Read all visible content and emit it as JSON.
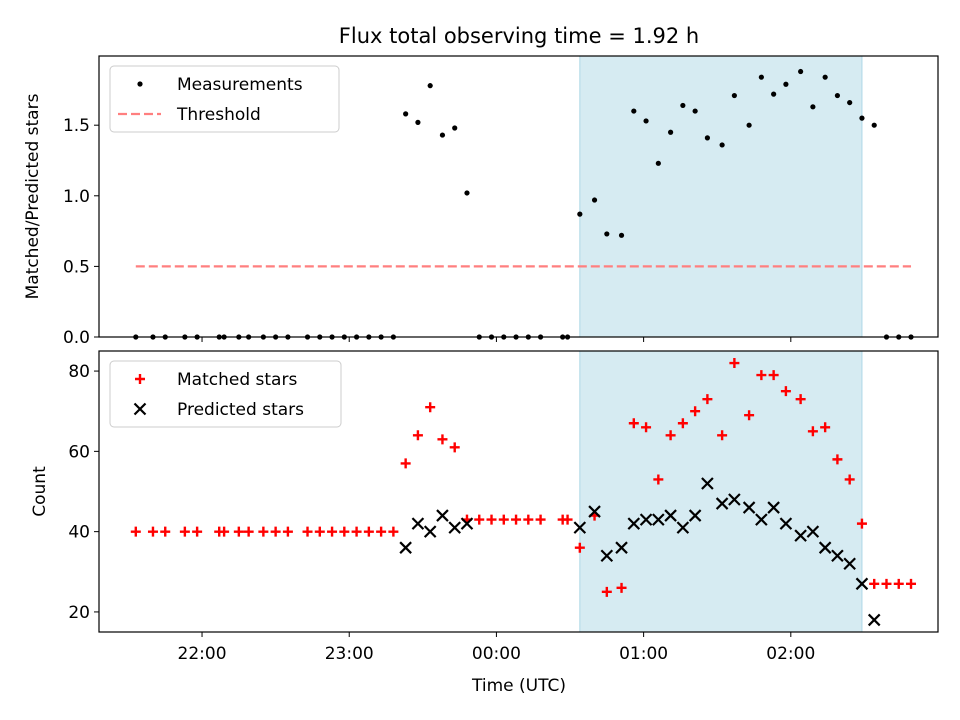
{
  "figure": {
    "title": "Flux total observing time = 1.92 h",
    "xlabel": "Time (UTC)",
    "xticks": [
      {
        "t": "22:00",
        "label": "22:00"
      },
      {
        "t": "23:00",
        "label": "23:00"
      },
      {
        "t": "00:00",
        "label": "00:00"
      },
      {
        "t": "01:00",
        "label": "01:00"
      },
      {
        "t": "02:00",
        "label": "02:00"
      }
    ],
    "xlim": [
      "21:18",
      "03:00"
    ],
    "highlight_span": [
      "00:34",
      "02:29"
    ],
    "highlight_color": "#add8e6"
  },
  "chart_data": [
    {
      "type": "scatter",
      "ylabel": "Matched/Predicted stars",
      "ylim": [
        0,
        1.99
      ],
      "yticks": [
        "0.0",
        "0.5",
        "1.0",
        "1.5"
      ],
      "legend": {
        "placement": "top-left",
        "entries": [
          "Measurements",
          "Threshold"
        ]
      },
      "series": [
        {
          "name": "Measurements",
          "color": "#000000",
          "marker": "dot",
          "points": [
            [
              "21:33",
              0
            ],
            [
              "21:40",
              0
            ],
            [
              "21:45",
              0
            ],
            [
              "21:53",
              0
            ],
            [
              "21:58",
              0
            ],
            [
              "22:07",
              0
            ],
            [
              "22:09",
              0
            ],
            [
              "22:15",
              0
            ],
            [
              "22:19",
              0
            ],
            [
              "22:25",
              0
            ],
            [
              "22:30",
              0
            ],
            [
              "22:35",
              0
            ],
            [
              "22:43",
              0
            ],
            [
              "22:48",
              0
            ],
            [
              "22:53",
              0
            ],
            [
              "22:58",
              0
            ],
            [
              "23:03",
              0
            ],
            [
              "23:08",
              0
            ],
            [
              "23:13",
              0
            ],
            [
              "23:18",
              0
            ],
            [
              "23:23",
              1.58
            ],
            [
              "23:28",
              1.52
            ],
            [
              "23:33",
              1.78
            ],
            [
              "23:38",
              1.43
            ],
            [
              "23:43",
              1.48
            ],
            [
              "23:48",
              1.02
            ],
            [
              "23:53",
              0
            ],
            [
              "23:58",
              0
            ],
            [
              "00:03",
              0
            ],
            [
              "00:08",
              0
            ],
            [
              "00:13",
              0
            ],
            [
              "00:18",
              0
            ],
            [
              "00:27",
              0
            ],
            [
              "00:29",
              0
            ],
            [
              "00:34",
              0.87
            ],
            [
              "00:40",
              0.97
            ],
            [
              "00:45",
              0.73
            ],
            [
              "00:51",
              0.72
            ],
            [
              "00:56",
              1.6
            ],
            [
              "01:01",
              1.53
            ],
            [
              "01:06",
              1.23
            ],
            [
              "01:11",
              1.45
            ],
            [
              "01:16",
              1.64
            ],
            [
              "01:21",
              1.6
            ],
            [
              "01:26",
              1.41
            ],
            [
              "01:32",
              1.36
            ],
            [
              "01:37",
              1.71
            ],
            [
              "01:43",
              1.5
            ],
            [
              "01:48",
              1.84
            ],
            [
              "01:53",
              1.72
            ],
            [
              "01:58",
              1.79
            ],
            [
              "02:04",
              1.88
            ],
            [
              "02:09",
              1.63
            ],
            [
              "02:14",
              1.84
            ],
            [
              "02:19",
              1.71
            ],
            [
              "02:24",
              1.66
            ],
            [
              "02:29",
              1.55
            ],
            [
              "02:34",
              1.5
            ],
            [
              "02:39",
              0
            ],
            [
              "02:44",
              0
            ],
            [
              "02:49",
              0
            ]
          ]
        },
        {
          "name": "Threshold",
          "color": "#ff7f7f",
          "style": "dashed",
          "points": [
            [
              "21:33",
              0.5
            ],
            [
              "02:49",
              0.5
            ]
          ]
        }
      ]
    },
    {
      "type": "scatter",
      "ylabel": "Count",
      "ylim": [
        15,
        85
      ],
      "yticks": [
        "20",
        "40",
        "60",
        "80"
      ],
      "legend": {
        "placement": "top-left",
        "entries": [
          "Matched stars",
          "Predicted stars"
        ]
      },
      "series": [
        {
          "name": "Matched stars",
          "color": "#ff0000",
          "marker": "plus",
          "points": [
            [
              "21:33",
              40
            ],
            [
              "21:40",
              40
            ],
            [
              "21:45",
              40
            ],
            [
              "21:53",
              40
            ],
            [
              "21:58",
              40
            ],
            [
              "22:07",
              40
            ],
            [
              "22:09",
              40
            ],
            [
              "22:15",
              40
            ],
            [
              "22:19",
              40
            ],
            [
              "22:25",
              40
            ],
            [
              "22:30",
              40
            ],
            [
              "22:35",
              40
            ],
            [
              "22:43",
              40
            ],
            [
              "22:48",
              40
            ],
            [
              "22:53",
              40
            ],
            [
              "22:58",
              40
            ],
            [
              "23:03",
              40
            ],
            [
              "23:08",
              40
            ],
            [
              "23:13",
              40
            ],
            [
              "23:18",
              40
            ],
            [
              "23:23",
              57
            ],
            [
              "23:28",
              64
            ],
            [
              "23:33",
              71
            ],
            [
              "23:38",
              63
            ],
            [
              "23:43",
              61
            ],
            [
              "23:48",
              43
            ],
            [
              "23:53",
              43
            ],
            [
              "23:58",
              43
            ],
            [
              "00:03",
              43
            ],
            [
              "00:08",
              43
            ],
            [
              "00:13",
              43
            ],
            [
              "00:18",
              43
            ],
            [
              "00:27",
              43
            ],
            [
              "00:29",
              43
            ],
            [
              "00:34",
              36
            ],
            [
              "00:40",
              44
            ],
            [
              "00:45",
              25
            ],
            [
              "00:51",
              26
            ],
            [
              "00:56",
              67
            ],
            [
              "01:01",
              66
            ],
            [
              "01:06",
              53
            ],
            [
              "01:11",
              64
            ],
            [
              "01:16",
              67
            ],
            [
              "01:21",
              70
            ],
            [
              "01:26",
              73
            ],
            [
              "01:32",
              64
            ],
            [
              "01:37",
              82
            ],
            [
              "01:43",
              69
            ],
            [
              "01:48",
              79
            ],
            [
              "01:53",
              79
            ],
            [
              "01:58",
              75
            ],
            [
              "02:04",
              73
            ],
            [
              "02:09",
              65
            ],
            [
              "02:14",
              66
            ],
            [
              "02:19",
              58
            ],
            [
              "02:24",
              53
            ],
            [
              "02:29",
              42
            ],
            [
              "02:34",
              27
            ],
            [
              "02:39",
              27
            ],
            [
              "02:44",
              27
            ],
            [
              "02:49",
              27
            ]
          ]
        },
        {
          "name": "Predicted stars",
          "color": "#000000",
          "marker": "x",
          "points": [
            [
              "23:23",
              36
            ],
            [
              "23:28",
              42
            ],
            [
              "23:33",
              40
            ],
            [
              "23:38",
              44
            ],
            [
              "23:43",
              41
            ],
            [
              "23:48",
              42
            ],
            [
              "00:34",
              41
            ],
            [
              "00:40",
              45
            ],
            [
              "00:45",
              34
            ],
            [
              "00:51",
              36
            ],
            [
              "00:56",
              42
            ],
            [
              "01:01",
              43
            ],
            [
              "01:06",
              43
            ],
            [
              "01:11",
              44
            ],
            [
              "01:16",
              41
            ],
            [
              "01:21",
              44
            ],
            [
              "01:26",
              52
            ],
            [
              "01:32",
              47
            ],
            [
              "01:37",
              48
            ],
            [
              "01:43",
              46
            ],
            [
              "01:48",
              43
            ],
            [
              "01:53",
              46
            ],
            [
              "01:58",
              42
            ],
            [
              "02:04",
              39
            ],
            [
              "02:09",
              40
            ],
            [
              "02:14",
              36
            ],
            [
              "02:19",
              34
            ],
            [
              "02:24",
              32
            ],
            [
              "02:29",
              27
            ],
            [
              "02:34",
              18
            ]
          ]
        }
      ]
    }
  ]
}
